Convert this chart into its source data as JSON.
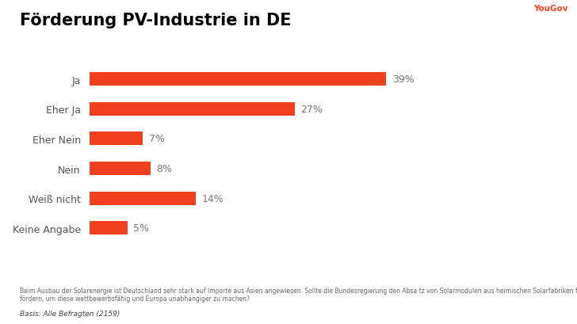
{
  "title": "Förderung PV-Industrie in DE",
  "categories": [
    "Ja",
    "Eher Ja",
    "Eher Nein",
    "Nein",
    "Weiß nicht",
    "Keine Angabe"
  ],
  "values": [
    39,
    27,
    7,
    8,
    14,
    5
  ],
  "bar_color": "#f04020",
  "label_color": "#555555",
  "value_color": "#777777",
  "background_color": "#ffffff",
  "title_color": "#000000",
  "yougov_color": "#f04020",
  "yougov_text": "YouGov",
  "footnote": "Beim Ausbau der Solarenergie ist Deutschland sehr stark auf Importe aus Asien angewiesen. Sollte die Bundesregierung den Absa tz von Solarmodulen aus heimischen Solarfabriken für einen begrenzten Zeitraum gezielt fördern, um diese wettbewerbsfähig und Europa unabhängiger zu machen?",
  "basis": "Basis: Alle Befragten (2159)",
  "xlim": [
    0,
    55
  ]
}
